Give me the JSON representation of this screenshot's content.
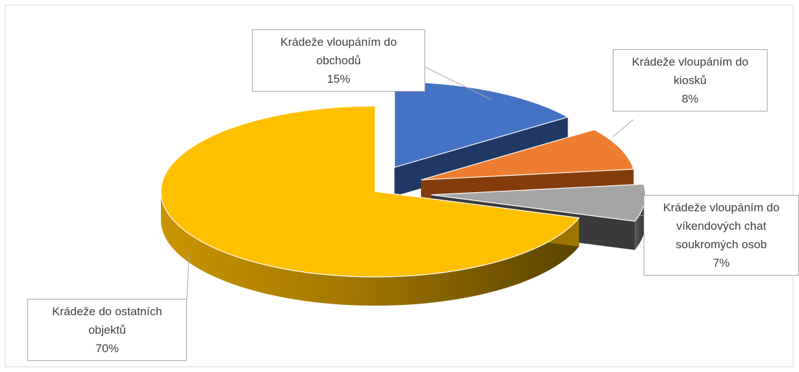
{
  "chart_data": {
    "type": "pie",
    "title": "",
    "style": "3d-exploded",
    "slices": [
      {
        "category_lines": [
          "Krádeže vloupáním do",
          "obchodů"
        ],
        "label": "15%",
        "value": 15,
        "color": "#4472c4",
        "side_color": "#203864"
      },
      {
        "category_lines": [
          "Krádeže vloupáním do",
          "kiosků"
        ],
        "label": "8%",
        "value": 8,
        "color": "#ed7d31",
        "side_color": "#843c0c"
      },
      {
        "category_lines": [
          "Krádeže vloupáním do",
          "víkendových chat",
          "soukromých osob"
        ],
        "label": "7%",
        "value": 7,
        "color": "#a5a5a5",
        "side_color": "#3a3a3a"
      },
      {
        "category_lines": [
          "Krádeže do ostatních",
          "objektů"
        ],
        "label": "70%",
        "value": 70,
        "color": "#ffc000",
        "side_color": "#9c7500"
      }
    ]
  }
}
